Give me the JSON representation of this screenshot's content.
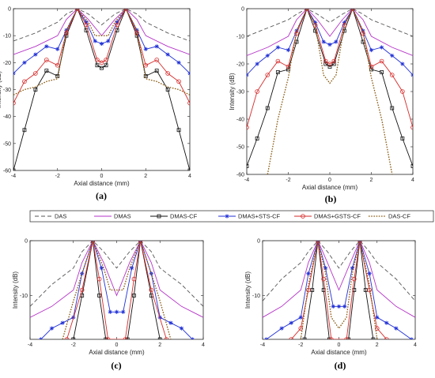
{
  "legend": [
    {
      "name": "DAS",
      "color": "#555555",
      "dash": "5,3",
      "marker": "none"
    },
    {
      "name": "DMAS",
      "color": "#b533c8",
      "dash": "",
      "marker": "none"
    },
    {
      "name": "DMAS-CF",
      "color": "#111111",
      "dash": "",
      "marker": "square"
    },
    {
      "name": "DMAS+STS-CF",
      "color": "#1f2fd6",
      "dash": "",
      "marker": "star"
    },
    {
      "name": "DMAS+GSTS-CF",
      "color": "#d62a2a",
      "dash": "",
      "marker": "circle"
    },
    {
      "name": "DAS-CF",
      "color": "#8a5a10",
      "dash": "1.6,1.6",
      "marker": "none"
    }
  ],
  "chart_data": [
    {
      "panel": "(a)",
      "type": "line",
      "xlabel": "Axial distance (mm)",
      "ylabel": "Intensity (dB)",
      "xlim": [
        -4,
        4
      ],
      "ylim": [
        -60,
        0
      ],
      "xticks": [
        -4,
        -2,
        0,
        2,
        4
      ],
      "yticks": [
        0,
        -10,
        -20,
        -30,
        -40,
        -50,
        -60
      ],
      "series": [
        {
          "name": "DAS",
          "x": [
            -4,
            -3,
            -2,
            -1.6,
            -1.1,
            -0.6,
            0,
            0.6,
            1.1,
            1.6,
            2,
            3,
            4
          ],
          "y": [
            -12,
            -9,
            -5,
            -2,
            0,
            -2,
            -6,
            -2,
            0,
            -2,
            -5,
            -9,
            -12
          ]
        },
        {
          "name": "DMAS",
          "x": [
            -4,
            -3,
            -2,
            -1.6,
            -1.1,
            -0.6,
            0,
            0.6,
            1.1,
            1.6,
            2,
            3,
            4
          ],
          "y": [
            -17,
            -14,
            -10,
            -4,
            0,
            -4,
            -10,
            -4,
            0,
            -4,
            -10,
            -14,
            -17
          ]
        },
        {
          "name": "DMAS-CF",
          "x": [
            -4,
            -3.5,
            -3,
            -2.5,
            -2,
            -1.6,
            -1.1,
            -0.7,
            -0.2,
            0,
            0.2,
            0.7,
            1.1,
            1.6,
            2,
            2.5,
            3,
            3.5,
            4
          ],
          "y": [
            -60,
            -45,
            -30,
            -23,
            -25,
            -10,
            0,
            -8,
            -21,
            -22,
            -21,
            -8,
            0,
            -10,
            -25,
            -23,
            -30,
            -45,
            -60
          ]
        },
        {
          "name": "DMAS+STS-CF",
          "x": [
            -4,
            -3.5,
            -3,
            -2.5,
            -2,
            -1.6,
            -1.1,
            -0.7,
            -0.3,
            0,
            0.3,
            0.7,
            1.1,
            1.6,
            2,
            2.5,
            3,
            3.5,
            4
          ],
          "y": [
            -24,
            -20,
            -17,
            -14,
            -15,
            -8,
            0,
            -5,
            -12,
            -13,
            -12,
            -5,
            0,
            -8,
            -15,
            -14,
            -17,
            -20,
            -24
          ]
        },
        {
          "name": "DMAS+GSTS-CF",
          "x": [
            -4,
            -3.5,
            -3,
            -2.5,
            -2,
            -1.6,
            -1.1,
            -0.7,
            -0.2,
            0,
            0.2,
            0.7,
            1.1,
            1.6,
            2,
            2.5,
            3,
            3.5,
            4
          ],
          "y": [
            -35,
            -27,
            -24,
            -19,
            -21,
            -9,
            0,
            -6,
            -19,
            -20,
            -19,
            -6,
            0,
            -9,
            -21,
            -19,
            -24,
            -27,
            -35
          ]
        },
        {
          "name": "DAS-CF",
          "x": [
            -4,
            -3.5,
            -3,
            -2.5,
            -2,
            -1.6,
            -1.1,
            -0.6,
            -0.3,
            0,
            0.3,
            0.6,
            1.1,
            1.6,
            2,
            2.5,
            3,
            3.5,
            4
          ],
          "y": [
            -32,
            -30,
            -29,
            -27,
            -26,
            -8,
            0,
            -5,
            -10,
            -10,
            -10,
            -5,
            0,
            -8,
            -26,
            -27,
            -29,
            -30,
            -32
          ]
        }
      ]
    },
    {
      "panel": "(b)",
      "type": "line",
      "xlabel": "Axial distance (mm)",
      "ylabel": "Intensity (dB)",
      "xlim": [
        -4,
        4
      ],
      "ylim": [
        -60,
        0
      ],
      "xticks": [
        -4,
        -2,
        0,
        2,
        4
      ],
      "yticks": [
        0,
        -10,
        -20,
        -30,
        -40,
        -50,
        -60
      ],
      "series": [
        {
          "name": "DAS",
          "x": [
            -4,
            -3,
            -2,
            -1.6,
            -1.1,
            -0.6,
            0,
            0.6,
            1.1,
            1.6,
            2,
            3,
            4
          ],
          "y": [
            -10,
            -7,
            -4,
            -2,
            0,
            -2,
            -5,
            -2,
            0,
            -2,
            -4,
            -7,
            -10
          ]
        },
        {
          "name": "DMAS",
          "x": [
            -4,
            -3,
            -2,
            -1.6,
            -1.1,
            -0.6,
            0,
            0.6,
            1.1,
            1.6,
            2,
            3,
            4
          ],
          "y": [
            -17,
            -14,
            -10,
            -4,
            0,
            -4,
            -10,
            -4,
            0,
            -4,
            -10,
            -14,
            -17
          ]
        },
        {
          "name": "DMAS-CF",
          "x": [
            -4,
            -3.5,
            -3,
            -2.5,
            -2,
            -1.6,
            -1.1,
            -0.7,
            -0.2,
            0,
            0.2,
            0.7,
            1.1,
            1.6,
            2,
            2.5,
            3,
            3.5,
            4
          ],
          "y": [
            -57,
            -47,
            -36,
            -23,
            -22,
            -12,
            0,
            -8,
            -20,
            -21,
            -20,
            -8,
            0,
            -12,
            -22,
            -23,
            -36,
            -47,
            -57
          ]
        },
        {
          "name": "DMAS+STS-CF",
          "x": [
            -4,
            -3.5,
            -3,
            -2.5,
            -2,
            -1.6,
            -1.1,
            -0.7,
            -0.3,
            0,
            0.3,
            0.7,
            1.1,
            1.6,
            2,
            2.5,
            3,
            3.5,
            4
          ],
          "y": [
            -24,
            -20,
            -17,
            -14,
            -15,
            -8,
            0,
            -5,
            -12,
            -13,
            -12,
            -5,
            0,
            -8,
            -15,
            -14,
            -17,
            -20,
            -24
          ]
        },
        {
          "name": "DMAS+GSTS-CF",
          "x": [
            -4,
            -3.5,
            -3,
            -2.5,
            -2,
            -1.6,
            -1.1,
            -0.7,
            -0.2,
            0,
            0.2,
            0.7,
            1.1,
            1.6,
            2,
            2.5,
            3,
            3.5,
            4
          ],
          "y": [
            -43,
            -30,
            -24,
            -19,
            -21,
            -9,
            0,
            -6,
            -19,
            -20,
            -19,
            -6,
            0,
            -9,
            -21,
            -19,
            -24,
            -30,
            -43
          ]
        },
        {
          "name": "DAS-CF",
          "x": [
            -3,
            -2.5,
            -2,
            -1.6,
            -1.1,
            -0.7,
            -0.3,
            0,
            0.3,
            0.7,
            1.1,
            1.6,
            2,
            2.5,
            3
          ],
          "y": [
            -60,
            -40,
            -25,
            -8,
            0,
            -6,
            -24,
            -27,
            -24,
            -6,
            0,
            -8,
            -25,
            -40,
            -60
          ]
        }
      ]
    },
    {
      "panel": "(c)",
      "type": "line",
      "xlabel": "Axial distance (mm)",
      "ylabel": "Intensity (dB)",
      "xlim": [
        -4,
        4
      ],
      "ylim": [
        -18,
        0
      ],
      "xticks": [
        -4,
        -2,
        0,
        2,
        4
      ],
      "yticks": [
        0,
        -10
      ],
      "series": [
        {
          "name": "DAS",
          "x": [
            -4,
            -3,
            -2,
            -1.6,
            -1.1,
            -0.6,
            0,
            0.6,
            1.1,
            1.6,
            2,
            3,
            4
          ],
          "y": [
            -12,
            -8,
            -5,
            -2,
            0,
            -2,
            -5,
            -2,
            0,
            -2,
            -5,
            -8,
            -12
          ]
        },
        {
          "name": "DMAS",
          "x": [
            -4,
            -3,
            -2,
            -1.6,
            -1.1,
            -0.6,
            0,
            0.6,
            1.1,
            1.6,
            2,
            3,
            4
          ],
          "y": [
            -14,
            -12,
            -9,
            -4,
            0,
            -4,
            -10,
            -4,
            0,
            -4,
            -9,
            -12,
            -14
          ]
        },
        {
          "name": "DMAS-CF",
          "x": [
            -2,
            -1.6,
            -1.1,
            -0.8,
            -0.5,
            0.5,
            0.8,
            1.1,
            1.6,
            2
          ],
          "y": [
            -18,
            -10,
            0,
            -10,
            -18,
            -18,
            -10,
            0,
            -10,
            -18
          ]
        },
        {
          "name": "DMAS+STS-CF",
          "x": [
            -3.5,
            -3,
            -2.5,
            -2,
            -1.6,
            -1.1,
            -0.7,
            -0.3,
            0,
            0.3,
            0.7,
            1.1,
            1.6,
            2,
            2.5,
            3,
            3.5
          ],
          "y": [
            -18,
            -16,
            -15,
            -14,
            -6,
            0,
            -5,
            -13,
            -13,
            -13,
            -5,
            0,
            -6,
            -14,
            -15,
            -16,
            -18
          ]
        },
        {
          "name": "DMAS+GSTS-CF",
          "x": [
            -2.3,
            -1.6,
            -1.1,
            -0.8,
            -0.4,
            0.4,
            0.8,
            1.1,
            1.6,
            2.3
          ],
          "y": [
            -18,
            -9,
            0,
            -7,
            -18,
            -18,
            -7,
            0,
            -9,
            -18
          ]
        },
        {
          "name": "DAS-CF",
          "x": [
            -2.5,
            -2,
            -1.6,
            -1.1,
            -0.6,
            -0.3,
            0,
            0.3,
            0.6,
            1.1,
            1.6,
            2,
            2.5
          ],
          "y": [
            -18,
            -11,
            -6,
            0,
            -5,
            -9,
            -9,
            -9,
            -5,
            0,
            -6,
            -11,
            -18
          ]
        }
      ]
    },
    {
      "panel": "(d)",
      "type": "line",
      "xlabel": "Axial distance (mm)",
      "ylabel": "Intensity (dB)",
      "xlim": [
        -4,
        4
      ],
      "ylim": [
        -18,
        0
      ],
      "xticks": [
        -4,
        -2,
        0,
        2,
        4
      ],
      "yticks": [
        0,
        -10
      ],
      "series": [
        {
          "name": "DAS",
          "x": [
            -4,
            -3,
            -2,
            -1.6,
            -1.1,
            -0.6,
            0,
            0.6,
            1.1,
            1.6,
            2,
            3,
            4
          ],
          "y": [
            -11,
            -7,
            -4,
            -2,
            0,
            -2,
            -5,
            -2,
            0,
            -2,
            -4,
            -7,
            -11
          ]
        },
        {
          "name": "DMAS",
          "x": [
            -4,
            -3,
            -2,
            -1.6,
            -1.1,
            -0.6,
            0,
            0.6,
            1.1,
            1.6,
            2,
            3,
            4
          ],
          "y": [
            -14,
            -12,
            -9,
            -4,
            0,
            -4,
            -9,
            -4,
            0,
            -4,
            -9,
            -12,
            -14
          ]
        },
        {
          "name": "DMAS-CF",
          "x": [
            -1.8,
            -1.4,
            -1.1,
            -0.8,
            -0.5,
            0.5,
            0.8,
            1.1,
            1.4,
            1.8
          ],
          "y": [
            -18,
            -9,
            0,
            -9,
            -18,
            -18,
            -9,
            0,
            -9,
            -18
          ]
        },
        {
          "name": "DMAS+STS-CF",
          "x": [
            -3.8,
            -3,
            -2.5,
            -2,
            -1.6,
            -1.1,
            -0.7,
            -0.3,
            0,
            0.3,
            0.7,
            1.1,
            1.6,
            2,
            2.5,
            3,
            3.8
          ],
          "y": [
            -18,
            -16,
            -15,
            -14,
            -6,
            0,
            -5,
            -12,
            -12,
            -12,
            -5,
            0,
            -6,
            -14,
            -15,
            -16,
            -18
          ]
        },
        {
          "name": "DMAS+GSTS-CF",
          "x": [
            -2.5,
            -2,
            -1.6,
            -1.1,
            -0.8,
            -0.4,
            0.4,
            0.8,
            1.1,
            1.6,
            2,
            2.5
          ],
          "y": [
            -18,
            -16,
            -9,
            0,
            -7,
            -18,
            -18,
            -7,
            0,
            -9,
            -16,
            -18
          ]
        },
        {
          "name": "DAS-CF",
          "x": [
            -2,
            -1.6,
            -1.1,
            -0.7,
            -0.4,
            0,
            0.4,
            0.7,
            1.1,
            1.6,
            2
          ],
          "y": [
            -18,
            -8,
            0,
            -6,
            -14,
            -16,
            -14,
            -6,
            0,
            -8,
            -18
          ]
        }
      ]
    }
  ]
}
